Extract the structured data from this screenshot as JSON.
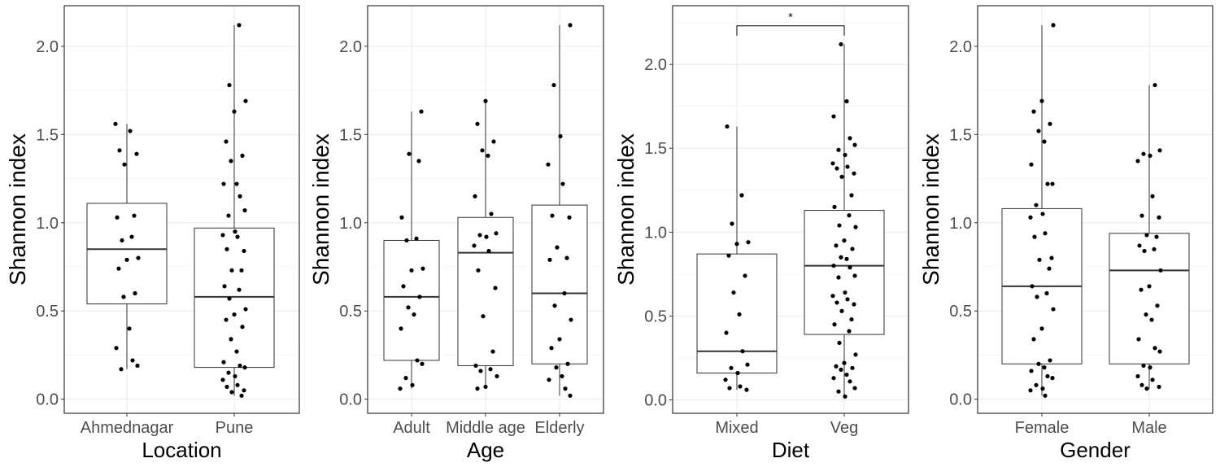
{
  "chart_data": [
    {
      "type": "boxplot",
      "xlabel": "Location",
      "ylabel": "Shannon index",
      "ylim": [
        -0.08,
        2.23
      ],
      "yticks": [
        0.0,
        0.5,
        1.0,
        1.5,
        2.0
      ],
      "ytick_labels": [
        "0.0",
        "0.5",
        "1.0",
        "1.5",
        "2.0"
      ],
      "grid": true,
      "categories": [
        "Ahmednagar",
        "Pune"
      ],
      "boxes": [
        {
          "q1": 0.54,
          "median": 0.85,
          "q3": 1.11,
          "whisker_low": 0.17,
          "whisker_high": 1.56
        },
        {
          "q1": 0.18,
          "median": 0.58,
          "q3": 0.97,
          "whisker_low": 0.02,
          "whisker_high": 2.12
        }
      ],
      "points": [
        [
          1.56,
          1.52,
          1.41,
          1.39,
          1.33,
          1.04,
          1.03,
          0.92,
          0.9,
          0.8,
          0.79,
          0.74,
          0.6,
          0.58,
          0.4,
          0.29,
          0.22,
          0.19,
          0.17
        ],
        [
          2.12,
          1.78,
          1.69,
          1.63,
          1.46,
          1.38,
          1.35,
          1.22,
          1.22,
          1.15,
          1.07,
          1.04,
          0.95,
          0.93,
          0.92,
          0.85,
          0.84,
          0.73,
          0.73,
          0.64,
          0.62,
          0.57,
          0.51,
          0.48,
          0.45,
          0.41,
          0.34,
          0.27,
          0.21,
          0.19,
          0.18,
          0.15,
          0.13,
          0.11,
          0.08,
          0.07,
          0.05,
          0.04,
          0.02
        ]
      ],
      "annotations": []
    },
    {
      "type": "boxplot",
      "xlabel": "Age",
      "ylabel": "Shannon index",
      "ylim": [
        -0.08,
        2.23
      ],
      "yticks": [
        0.0,
        0.5,
        1.0,
        1.5,
        2.0
      ],
      "ytick_labels": [
        "0.0",
        "0.5",
        "1.0",
        "1.5",
        "2.0"
      ],
      "grid": true,
      "categories": [
        "Adult",
        "Middle age",
        "Elderly"
      ],
      "boxes": [
        {
          "q1": 0.22,
          "median": 0.58,
          "q3": 0.9,
          "whisker_low": 0.06,
          "whisker_high": 1.63
        },
        {
          "q1": 0.19,
          "median": 0.83,
          "q3": 1.03,
          "whisker_low": 0.06,
          "whisker_high": 1.69
        },
        {
          "q1": 0.2,
          "median": 0.6,
          "q3": 1.1,
          "whisker_low": 0.02,
          "whisker_high": 2.12
        }
      ],
      "points": [
        [
          1.63,
          1.39,
          1.35,
          1.03,
          0.91,
          0.9,
          0.74,
          0.73,
          0.64,
          0.58,
          0.52,
          0.48,
          0.4,
          0.22,
          0.2,
          0.12,
          0.08,
          0.06
        ],
        [
          1.69,
          1.56,
          1.46,
          1.41,
          1.38,
          1.15,
          1.05,
          0.94,
          0.93,
          0.92,
          0.87,
          0.84,
          0.73,
          0.63,
          0.47,
          0.27,
          0.19,
          0.17,
          0.16,
          0.13,
          0.07,
          0.06
        ],
        [
          2.12,
          1.78,
          1.49,
          1.33,
          1.22,
          1.04,
          1.03,
          0.86,
          0.8,
          0.79,
          0.6,
          0.53,
          0.45,
          0.34,
          0.29,
          0.2,
          0.18,
          0.13,
          0.11,
          0.06,
          0.02
        ]
      ],
      "annotations": []
    },
    {
      "type": "boxplot",
      "xlabel": "Diet",
      "ylabel": "Shannon index",
      "ylim": [
        -0.08,
        2.35
      ],
      "yticks": [
        0.0,
        0.5,
        1.0,
        1.5,
        2.0
      ],
      "ytick_labels": [
        "0.0",
        "0.5",
        "1.0",
        "1.5",
        "2.0"
      ],
      "grid": true,
      "categories": [
        "Mixed",
        "Veg"
      ],
      "boxes": [
        {
          "q1": 0.16,
          "median": 0.29,
          "q3": 0.87,
          "whisker_low": 0.06,
          "whisker_high": 1.63
        },
        {
          "q1": 0.39,
          "median": 0.8,
          "q3": 1.13,
          "whisker_low": 0.02,
          "whisker_high": 2.12
        }
      ],
      "points": [
        [
          1.63,
          1.22,
          1.05,
          0.94,
          0.93,
          0.86,
          0.74,
          0.64,
          0.51,
          0.4,
          0.29,
          0.21,
          0.19,
          0.16,
          0.12,
          0.08,
          0.07,
          0.06
        ],
        [
          2.12,
          1.78,
          1.69,
          1.56,
          1.52,
          1.49,
          1.46,
          1.41,
          1.39,
          1.38,
          1.35,
          1.33,
          1.22,
          1.15,
          1.1,
          1.04,
          1.03,
          0.95,
          0.92,
          0.9,
          0.85,
          0.84,
          0.8,
          0.79,
          0.74,
          0.73,
          0.64,
          0.62,
          0.6,
          0.58,
          0.57,
          0.53,
          0.48,
          0.45,
          0.41,
          0.34,
          0.27,
          0.22,
          0.2,
          0.19,
          0.18,
          0.15,
          0.13,
          0.11,
          0.07,
          0.05,
          0.02
        ]
      ],
      "annotations": [
        {
          "type": "significance_bracket",
          "from": "Mixed",
          "to": "Veg",
          "y": 2.23,
          "label": "*"
        }
      ]
    },
    {
      "type": "boxplot",
      "xlabel": "Gender",
      "ylabel": "Shannon index",
      "ylim": [
        -0.08,
        2.23
      ],
      "yticks": [
        0.0,
        0.5,
        1.0,
        1.5,
        2.0
      ],
      "ytick_labels": [
        "0.0",
        "0.5",
        "1.0",
        "1.5",
        "2.0"
      ],
      "grid": true,
      "categories": [
        "Female",
        "Male"
      ],
      "boxes": [
        {
          "q1": 0.2,
          "median": 0.64,
          "q3": 1.08,
          "whisker_low": 0.02,
          "whisker_high": 2.12
        },
        {
          "q1": 0.2,
          "median": 0.73,
          "q3": 0.94,
          "whisker_low": 0.06,
          "whisker_high": 1.78
        }
      ],
      "points": [
        [
          2.12,
          1.69,
          1.63,
          1.56,
          1.52,
          1.46,
          1.33,
          1.22,
          1.22,
          1.1,
          1.05,
          1.03,
          0.94,
          0.92,
          0.8,
          0.79,
          0.74,
          0.64,
          0.6,
          0.58,
          0.51,
          0.4,
          0.34,
          0.22,
          0.2,
          0.18,
          0.16,
          0.13,
          0.12,
          0.08,
          0.06,
          0.05,
          0.02
        ],
        [
          1.78,
          1.41,
          1.39,
          1.38,
          1.35,
          1.15,
          1.04,
          1.03,
          0.93,
          0.92,
          0.87,
          0.85,
          0.84,
          0.73,
          0.64,
          0.62,
          0.53,
          0.48,
          0.45,
          0.34,
          0.29,
          0.27,
          0.19,
          0.18,
          0.13,
          0.11,
          0.08,
          0.07,
          0.06
        ]
      ],
      "annotations": []
    }
  ]
}
